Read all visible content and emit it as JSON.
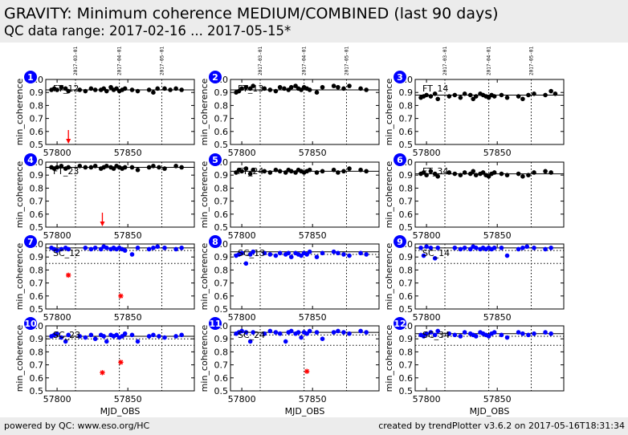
{
  "header": {
    "title": "GRAVITY: Minimum coherence MEDIUM/COMBINED (last 90 days)",
    "subtitle": "QC data range: 2017-02-16 ... 2017-05-15*"
  },
  "footer": {
    "left": "powered by QC: www.eso.org/HC",
    "right": "created by trendPlotter v3.6.2 on 2017-05-16T18:31:34"
  },
  "colors": {
    "header_bg": "#ececec",
    "ft_points": "#000000",
    "sc_points": "#0000ff",
    "outlier": "#ff0000",
    "badge": "#0000ff"
  },
  "chart_data": {
    "type": "scatter",
    "xlabel": "MJD_OBS",
    "ylabel": "min_coherence",
    "xlim": [
      57792,
      57897
    ],
    "ylim": [
      0.5,
      1.0
    ],
    "yticks": [
      0.5,
      0.6,
      0.7,
      0.8,
      0.9,
      1.0
    ],
    "xticks": [
      57800,
      57850
    ],
    "date_markers": [
      {
        "label": "2017-03-01",
        "mjd": 57813
      },
      {
        "label": "2017-04-01",
        "mjd": 57844
      },
      {
        "label": "2017-05-01",
        "mjd": 57874
      }
    ],
    "panels": [
      {
        "number": "1",
        "name": "FT_12",
        "color": "#000000",
        "ref": 0.92,
        "refdots": [],
        "x": [
          57796,
          57798,
          57800,
          57803,
          57806,
          57808,
          57816,
          57820,
          57824,
          57827,
          57831,
          57833,
          57835,
          57838,
          57840,
          57842,
          57844,
          57846,
          57848,
          57853,
          57857,
          57865,
          57868,
          57871,
          57876,
          57880,
          57884,
          57888
        ],
        "y": [
          0.92,
          0.93,
          0.92,
          0.94,
          0.93,
          0.91,
          0.92,
          0.91,
          0.93,
          0.92,
          0.92,
          0.93,
          0.91,
          0.94,
          0.92,
          0.93,
          0.91,
          0.92,
          0.93,
          0.92,
          0.91,
          0.92,
          0.9,
          0.93,
          0.93,
          0.92,
          0.93,
          0.92
        ],
        "outliers": [],
        "low_arrows": [
          57808
        ]
      },
      {
        "number": "2",
        "name": "FT_13",
        "color": "#000000",
        "ref": 0.92,
        "refdots": [],
        "x": [
          57796,
          57798,
          57800,
          57803,
          57806,
          57808,
          57816,
          57820,
          57824,
          57827,
          57830,
          57833,
          57835,
          57838,
          57840,
          57842,
          57844,
          57846,
          57848,
          57853,
          57857,
          57865,
          57868,
          57872,
          57876,
          57884,
          57888
        ],
        "y": [
          0.9,
          0.91,
          0.93,
          0.94,
          0.93,
          0.95,
          0.93,
          0.92,
          0.91,
          0.94,
          0.93,
          0.92,
          0.94,
          0.95,
          0.93,
          0.92,
          0.94,
          0.93,
          0.92,
          0.9,
          0.94,
          0.95,
          0.94,
          0.93,
          0.95,
          0.93,
          0.92
        ],
        "outliers": [],
        "low_arrows": []
      },
      {
        "number": "3",
        "name": "FT_14",
        "color": "#000000",
        "ref": 0.88,
        "refdots": [],
        "x": [
          57796,
          57798,
          57800,
          57803,
          57806,
          57808,
          57816,
          57820,
          57824,
          57827,
          57831,
          57833,
          57835,
          57838,
          57840,
          57842,
          57844,
          57846,
          57848,
          57853,
          57857,
          57865,
          57868,
          57872,
          57876,
          57884,
          57888,
          57891
        ],
        "y": [
          0.86,
          0.87,
          0.88,
          0.87,
          0.89,
          0.85,
          0.87,
          0.88,
          0.86,
          0.89,
          0.88,
          0.85,
          0.87,
          0.89,
          0.88,
          0.87,
          0.86,
          0.88,
          0.87,
          0.88,
          0.86,
          0.87,
          0.85,
          0.88,
          0.89,
          0.88,
          0.91,
          0.89
        ],
        "outliers": [],
        "low_arrows": []
      },
      {
        "number": "4",
        "name": "FT_23",
        "color": "#000000",
        "ref": 0.96,
        "refdots": [],
        "x": [
          57796,
          57798,
          57800,
          57803,
          57806,
          57808,
          57816,
          57820,
          57824,
          57827,
          57831,
          57833,
          57835,
          57838,
          57840,
          57842,
          57844,
          57846,
          57848,
          57853,
          57857,
          57865,
          57868,
          57872,
          57876,
          57884,
          57888
        ],
        "y": [
          0.96,
          0.95,
          0.96,
          0.97,
          0.95,
          0.96,
          0.97,
          0.96,
          0.96,
          0.97,
          0.95,
          0.96,
          0.97,
          0.96,
          0.95,
          0.97,
          0.96,
          0.95,
          0.96,
          0.96,
          0.94,
          0.96,
          0.97,
          0.96,
          0.95,
          0.97,
          0.96
        ],
        "outliers": [],
        "low_arrows": [
          57832
        ]
      },
      {
        "number": "5",
        "name": "FT_24",
        "color": "#000000",
        "ref": 0.93,
        "refdots": [],
        "x": [
          57796,
          57798,
          57800,
          57803,
          57806,
          57808,
          57816,
          57820,
          57824,
          57827,
          57831,
          57833,
          57835,
          57838,
          57840,
          57842,
          57844,
          57846,
          57848,
          57853,
          57857,
          57865,
          57868,
          57872,
          57876,
          57884,
          57888
        ],
        "y": [
          0.92,
          0.94,
          0.93,
          0.95,
          0.91,
          0.94,
          0.93,
          0.92,
          0.94,
          0.93,
          0.92,
          0.94,
          0.93,
          0.92,
          0.94,
          0.93,
          0.92,
          0.93,
          0.94,
          0.92,
          0.93,
          0.94,
          0.92,
          0.93,
          0.95,
          0.94,
          0.93
        ],
        "outliers": [],
        "low_arrows": []
      },
      {
        "number": "6",
        "name": "FT_34",
        "color": "#000000",
        "ref": 0.91,
        "refdots": [],
        "x": [
          57796,
          57798,
          57800,
          57803,
          57806,
          57808,
          57816,
          57820,
          57824,
          57827,
          57831,
          57833,
          57835,
          57838,
          57840,
          57842,
          57844,
          57846,
          57848,
          57853,
          57857,
          57865,
          57868,
          57872,
          57876,
          57884,
          57888
        ],
        "y": [
          0.91,
          0.92,
          0.9,
          0.93,
          0.91,
          0.89,
          0.92,
          0.91,
          0.9,
          0.92,
          0.91,
          0.93,
          0.9,
          0.91,
          0.92,
          0.9,
          0.89,
          0.91,
          0.92,
          0.91,
          0.9,
          0.91,
          0.89,
          0.9,
          0.92,
          0.93,
          0.92
        ],
        "outliers": [],
        "low_arrows": []
      },
      {
        "number": "7",
        "name": "SC_12",
        "color": "#0000ff",
        "ref": 0.97,
        "refdots": [
          0.95,
          0.85
        ],
        "x": [
          57796,
          57798,
          57800,
          57803,
          57806,
          57808,
          57820,
          57824,
          57827,
          57831,
          57833,
          57835,
          57838,
          57840,
          57842,
          57844,
          57846,
          57848,
          57853,
          57857,
          57865,
          57868,
          57871,
          57876,
          57884,
          57888
        ],
        "y": [
          0.97,
          0.96,
          0.95,
          0.96,
          0.97,
          0.96,
          0.97,
          0.96,
          0.97,
          0.96,
          0.98,
          0.97,
          0.96,
          0.97,
          0.96,
          0.97,
          0.96,
          0.95,
          0.92,
          0.97,
          0.96,
          0.97,
          0.98,
          0.97,
          0.96,
          0.97
        ],
        "outliers": [
          {
            "x": 57808,
            "y": 0.76
          },
          {
            "x": 57845,
            "y": 0.6
          }
        ],
        "low_arrows": []
      },
      {
        "number": "8",
        "name": "SC_13",
        "color": "#0000ff",
        "ref": 0.94,
        "refdots": [
          0.92,
          0.85
        ],
        "x": [
          57796,
          57798,
          57800,
          57803,
          57806,
          57808,
          57816,
          57820,
          57824,
          57827,
          57831,
          57833,
          57835,
          57838,
          57840,
          57842,
          57844,
          57846,
          57848,
          57853,
          57857,
          57865,
          57868,
          57872,
          57876,
          57884,
          57888
        ],
        "y": [
          0.91,
          0.92,
          0.93,
          0.85,
          0.92,
          0.94,
          0.93,
          0.92,
          0.91,
          0.93,
          0.92,
          0.93,
          0.9,
          0.93,
          0.92,
          0.91,
          0.93,
          0.92,
          0.94,
          0.9,
          0.93,
          0.94,
          0.93,
          0.92,
          0.91,
          0.93,
          0.92
        ],
        "outliers": [],
        "low_arrows": []
      },
      {
        "number": "9",
        "name": "SC_14",
        "color": "#0000ff",
        "ref": 0.97,
        "refdots": [
          0.95,
          0.85
        ],
        "x": [
          57796,
          57798,
          57800,
          57803,
          57806,
          57808,
          57820,
          57824,
          57827,
          57831,
          57833,
          57835,
          57838,
          57840,
          57842,
          57844,
          57846,
          57848,
          57853,
          57857,
          57865,
          57868,
          57871,
          57876,
          57884,
          57888
        ],
        "y": [
          0.97,
          0.91,
          0.98,
          0.97,
          0.89,
          0.97,
          0.97,
          0.96,
          0.97,
          0.96,
          0.98,
          0.97,
          0.96,
          0.97,
          0.96,
          0.97,
          0.96,
          0.97,
          0.97,
          0.91,
          0.96,
          0.97,
          0.98,
          0.97,
          0.96,
          0.97
        ],
        "outliers": [],
        "low_arrows": []
      },
      {
        "number": "10",
        "name": "SC_23",
        "color": "#0000ff",
        "ref": 0.92,
        "refdots": [
          0.9,
          0.85
        ],
        "x": [
          57796,
          57798,
          57800,
          57803,
          57806,
          57808,
          57816,
          57820,
          57824,
          57827,
          57831,
          57833,
          57835,
          57838,
          57840,
          57842,
          57844,
          57846,
          57848,
          57853,
          57857,
          57865,
          57868,
          57872,
          57876,
          57884,
          57888
        ],
        "y": [
          0.92,
          0.93,
          0.94,
          0.91,
          0.88,
          0.93,
          0.92,
          0.91,
          0.93,
          0.9,
          0.93,
          0.92,
          0.88,
          0.93,
          0.92,
          0.93,
          0.91,
          0.92,
          0.94,
          0.93,
          0.88,
          0.92,
          0.93,
          0.92,
          0.91,
          0.92,
          0.93
        ],
        "outliers": [
          {
            "x": 57832,
            "y": 0.64
          },
          {
            "x": 57845,
            "y": 0.72
          }
        ],
        "low_arrows": []
      },
      {
        "number": "11",
        "name": "SC_24",
        "color": "#0000ff",
        "ref": 0.95,
        "refdots": [
          0.93,
          0.85
        ],
        "x": [
          57796,
          57798,
          57800,
          57803,
          57806,
          57808,
          57816,
          57820,
          57824,
          57827,
          57831,
          57833,
          57835,
          57838,
          57840,
          57842,
          57844,
          57846,
          57848,
          57853,
          57857,
          57865,
          57868,
          57872,
          57876,
          57884,
          57888
        ],
        "y": [
          0.94,
          0.95,
          0.96,
          0.95,
          0.88,
          0.95,
          0.94,
          0.96,
          0.95,
          0.94,
          0.88,
          0.95,
          0.96,
          0.94,
          0.95,
          0.91,
          0.95,
          0.94,
          0.96,
          0.95,
          0.9,
          0.95,
          0.96,
          0.95,
          0.94,
          0.96,
          0.95
        ],
        "outliers": [
          {
            "x": 57846,
            "y": 0.65
          }
        ],
        "low_arrows": []
      },
      {
        "number": "12",
        "name": "SC_34",
        "color": "#0000ff",
        "ref": 0.94,
        "refdots": [
          0.92,
          0.85
        ],
        "x": [
          57796,
          57798,
          57800,
          57803,
          57806,
          57808,
          57816,
          57820,
          57824,
          57827,
          57831,
          57833,
          57835,
          57838,
          57840,
          57842,
          57844,
          57846,
          57848,
          57853,
          57857,
          57865,
          57868,
          57872,
          57876,
          57884,
          57888
        ],
        "y": [
          0.93,
          0.92,
          0.94,
          0.95,
          0.93,
          0.96,
          0.94,
          0.93,
          0.92,
          0.95,
          0.94,
          0.93,
          0.92,
          0.95,
          0.94,
          0.93,
          0.92,
          0.94,
          0.95,
          0.93,
          0.91,
          0.95,
          0.94,
          0.93,
          0.94,
          0.95,
          0.94
        ],
        "outliers": [],
        "low_arrows": []
      }
    ]
  }
}
